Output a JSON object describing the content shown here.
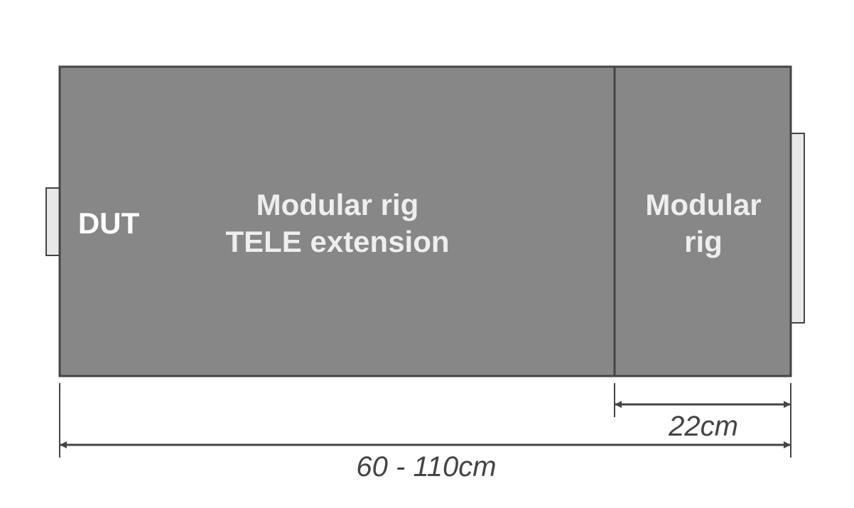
{
  "labels": {
    "dut": "DUT",
    "extension_line1": "Modular rig",
    "extension_line2": "TELE extension",
    "rig_line1": "Modular",
    "rig_line2": "rig"
  },
  "dimensions": {
    "rig_width": "22cm",
    "total_length": "60 - 110cm"
  },
  "colors": {
    "box_fill": "#878787",
    "outline": "#444444",
    "tab_fill": "#e8e8e8",
    "label_text": "#eeeeee"
  }
}
